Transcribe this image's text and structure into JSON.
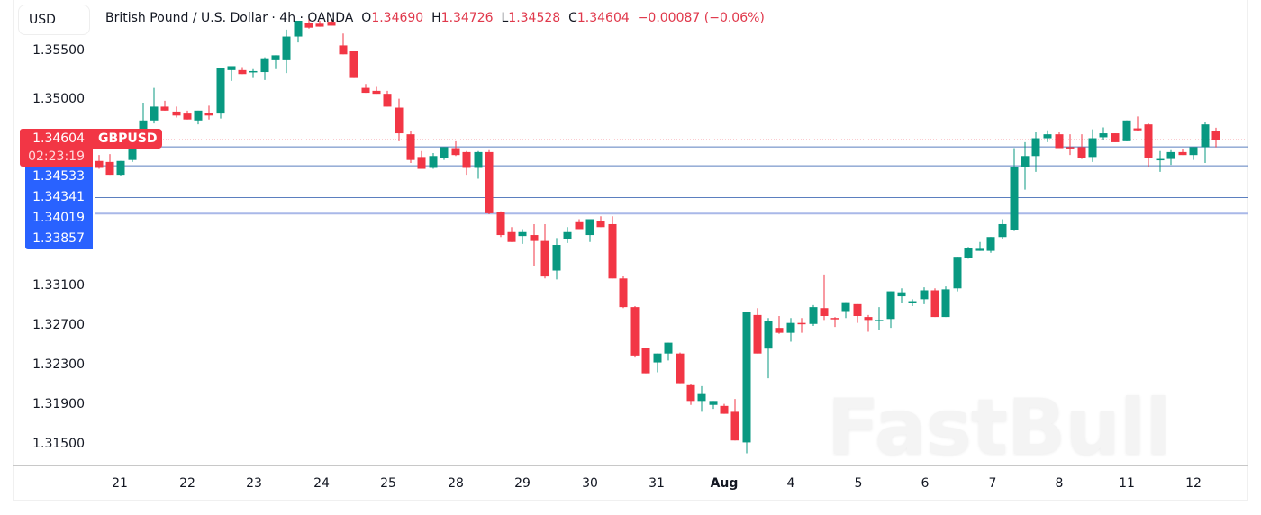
{
  "header": {
    "currency_button": "USD",
    "title": "British Pound / U.S. Dollar · 4h · OANDA",
    "ohlc": {
      "o_label": "O",
      "o": "1.34690",
      "h_label": "H",
      "h": "1.34726",
      "l_label": "L",
      "l": "1.34528",
      "c_label": "C",
      "c": "1.34604",
      "change": "−0.00087 (−0.06%)"
    }
  },
  "price_tags": {
    "current_price": "1.34604",
    "countdown": "02:23:19",
    "symbol": "GBPUSD",
    "levels": [
      "1.34533",
      "1.34341",
      "1.34019",
      "1.33857"
    ]
  },
  "watermark": "FastBull",
  "colors": {
    "up": "#089981",
    "down": "#f23645",
    "level_line": "#5b7fbf",
    "level_line_light": "#a9b8e8",
    "tag_blue": "#2962ff",
    "tag_red": "#f23645"
  },
  "chart_data": {
    "type": "candlestick",
    "title": "British Pound / U.S. Dollar · 4h · OANDA",
    "symbol": "GBPUSD",
    "timeframe": "4h",
    "ylabel": "USD",
    "ylim": [
      1.313,
      1.36
    ],
    "y_ticks": [
      "1.35500",
      "1.35000",
      "1.33100",
      "1.32700",
      "1.32300",
      "1.31900",
      "1.31500"
    ],
    "x_ticks": [
      "21",
      "22",
      "23",
      "24",
      "25",
      "28",
      "29",
      "30",
      "31",
      "Aug",
      "4",
      "5",
      "6",
      "7",
      "8",
      "11",
      "12"
    ],
    "horizontal_levels": [
      1.34533,
      1.34341,
      1.34019,
      1.33857
    ],
    "last": {
      "open": 1.3469,
      "high": 1.34726,
      "low": 1.34528,
      "close": 1.34604,
      "change": -0.00087,
      "change_pct": -0.06
    },
    "candles": [
      [
        110,
        1.3439,
        1.3445,
        1.3431,
        1.3432
      ],
      [
        122,
        1.3438,
        1.3446,
        1.3427,
        1.3425
      ],
      [
        134,
        1.3425,
        1.3438,
        1.3424,
        1.3439
      ],
      [
        147,
        1.344,
        1.3466,
        1.3438,
        1.3466
      ],
      [
        159,
        1.3466,
        1.3498,
        1.3461,
        1.348
      ],
      [
        171,
        1.348,
        1.3513,
        1.3477,
        1.3494
      ],
      [
        183,
        1.3494,
        1.35,
        1.349,
        1.349
      ],
      [
        196,
        1.3489,
        1.3494,
        1.3483,
        1.3485
      ],
      [
        208,
        1.3487,
        1.349,
        1.3481,
        1.3481
      ],
      [
        220,
        1.348,
        1.3486,
        1.3476,
        1.349
      ],
      [
        232,
        1.3488,
        1.3495,
        1.3481,
        1.3485
      ],
      [
        245,
        1.3487,
        1.3528,
        1.3482,
        1.3533
      ],
      [
        257,
        1.3531,
        1.3534,
        1.352,
        1.3535
      ],
      [
        269,
        1.3531,
        1.3534,
        1.3527,
        1.3527
      ],
      [
        281,
        1.353,
        1.3532,
        1.3523,
        1.353
      ],
      [
        294,
        1.3529,
        1.3544,
        1.3521,
        1.3543
      ],
      [
        306,
        1.3541,
        1.3546,
        1.3532,
        1.3546
      ],
      [
        318,
        1.3541,
        1.3572,
        1.3528,
        1.3565
      ],
      [
        331,
        1.3565,
        1.3575,
        1.3559,
        1.3581
      ],
      [
        343,
        1.3579,
        1.3583,
        1.3573,
        1.3574
      ],
      [
        355,
        1.3578,
        1.3581,
        1.3576,
        1.3575
      ],
      [
        368,
        1.358,
        1.3582,
        1.3577,
        1.3576
      ],
      [
        381,
        1.3556,
        1.3568,
        1.3547,
        1.3547
      ],
      [
        393,
        1.355,
        1.3549,
        1.3523,
        1.3523
      ],
      [
        406,
        1.3513,
        1.3517,
        1.3508,
        1.3508
      ],
      [
        418,
        1.351,
        1.3514,
        1.3507,
        1.3507
      ],
      [
        430,
        1.3507,
        1.351,
        1.3497,
        1.3494
      ],
      [
        443,
        1.3493,
        1.3502,
        1.3459,
        1.3467
      ],
      [
        456,
        1.3466,
        1.3469,
        1.3437,
        1.344
      ],
      [
        468,
        1.3443,
        1.3449,
        1.3435,
        1.3431
      ],
      [
        481,
        1.3432,
        1.3447,
        1.3431,
        1.3444
      ],
      [
        493,
        1.3442,
        1.3453,
        1.344,
        1.3453
      ],
      [
        506,
        1.3452,
        1.3459,
        1.3444,
        1.3445
      ],
      [
        518,
        1.3448,
        1.3449,
        1.3425,
        1.3432
      ],
      [
        531,
        1.3432,
        1.3449,
        1.3421,
        1.3448
      ],
      [
        543,
        1.3448,
        1.345,
        1.3385,
        1.3386
      ],
      [
        556,
        1.3387,
        1.3388,
        1.3362,
        1.3364
      ],
      [
        568,
        1.3367,
        1.3372,
        1.3357,
        1.3357
      ],
      [
        580,
        1.3363,
        1.337,
        1.3355,
        1.3367
      ],
      [
        593,
        1.3364,
        1.3375,
        1.3333,
        1.3358
      ],
      [
        605,
        1.3358,
        1.3375,
        1.332,
        1.3322
      ],
      [
        618,
        1.3328,
        1.3361,
        1.3319,
        1.3354
      ],
      [
        630,
        1.336,
        1.3372,
        1.3356,
        1.3367
      ],
      [
        643,
        1.3377,
        1.338,
        1.337,
        1.337
      ],
      [
        655,
        1.3364,
        1.3379,
        1.3357,
        1.338
      ],
      [
        667,
        1.3378,
        1.3383,
        1.3372,
        1.3372
      ],
      [
        680,
        1.3375,
        1.3383,
        1.332,
        1.332
      ],
      [
        692,
        1.332,
        1.3323,
        1.329,
        1.3291
      ],
      [
        705,
        1.3291,
        1.3292,
        1.324,
        1.3242
      ],
      [
        717,
        1.325,
        1.325,
        1.3224,
        1.3224
      ],
      [
        730,
        1.3235,
        1.3239,
        1.3225,
        1.3244
      ],
      [
        742,
        1.3244,
        1.3253,
        1.3237,
        1.3255
      ],
      [
        755,
        1.3244,
        1.3245,
        1.3223,
        1.3214
      ],
      [
        767,
        1.3212,
        1.3213,
        1.3192,
        1.3196
      ],
      [
        779,
        1.3196,
        1.3211,
        1.3185,
        1.3203
      ],
      [
        792,
        1.3192,
        1.3191,
        1.3188,
        1.3196
      ],
      [
        804,
        1.3191,
        1.3193,
        1.3186,
        1.3183
      ],
      [
        816,
        1.3185,
        1.3198,
        1.3177,
        1.3156
      ],
      [
        829,
        1.3154,
        1.3281,
        1.3143,
        1.3286
      ],
      [
        841,
        1.3283,
        1.329,
        1.3245,
        1.3244
      ],
      [
        853,
        1.3249,
        1.328,
        1.3219,
        1.3277
      ],
      [
        865,
        1.327,
        1.3282,
        1.3264,
        1.3265
      ],
      [
        878,
        1.3265,
        1.328,
        1.3256,
        1.3275
      ],
      [
        890,
        1.3275,
        1.328,
        1.3265,
        1.3274
      ],
      [
        903,
        1.3274,
        1.3293,
        1.3272,
        1.3291
      ],
      [
        915,
        1.329,
        1.3324,
        1.3278,
        1.3282
      ],
      [
        927,
        1.328,
        1.3281,
        1.3271,
        1.3279
      ],
      [
        939,
        1.3287,
        1.3292,
        1.328,
        1.3296
      ],
      [
        952,
        1.3294,
        1.3294,
        1.3275,
        1.3282
      ],
      [
        964,
        1.3281,
        1.3283,
        1.3266,
        1.3278
      ],
      [
        976,
        1.3277,
        1.3291,
        1.3268,
        1.3278
      ],
      [
        989,
        1.3279,
        1.3305,
        1.327,
        1.3307
      ],
      [
        1001,
        1.3302,
        1.331,
        1.3295,
        1.3306
      ],
      [
        1013,
        1.3295,
        1.3299,
        1.3292,
        1.3297
      ],
      [
        1026,
        1.3299,
        1.3311,
        1.3294,
        1.3308
      ],
      [
        1038,
        1.3308,
        1.331,
        1.3282,
        1.3281
      ],
      [
        1050,
        1.3281,
        1.3312,
        1.3282,
        1.3309
      ],
      [
        1063,
        1.331,
        1.3325,
        1.3307,
        1.3342
      ],
      [
        1075,
        1.3341,
        1.3352,
        1.334,
        1.3351
      ],
      [
        1088,
        1.3348,
        1.3357,
        1.3349,
        1.335
      ],
      [
        1100,
        1.3348,
        1.3362,
        1.3346,
        1.3362
      ],
      [
        1113,
        1.3362,
        1.338,
        1.336,
        1.3375
      ],
      [
        1126,
        1.3369,
        1.3452,
        1.3368,
        1.3433
      ],
      [
        1138,
        1.3433,
        1.3458,
        1.341,
        1.3444
      ],
      [
        1150,
        1.3444,
        1.3468,
        1.3428,
        1.3462
      ],
      [
        1163,
        1.3462,
        1.347,
        1.3458,
        1.3466
      ],
      [
        1176,
        1.3466,
        1.3468,
        1.3452,
        1.3452
      ],
      [
        1188,
        1.3453,
        1.3466,
        1.3445,
        1.3452
      ],
      [
        1201,
        1.3453,
        1.3466,
        1.3441,
        1.3442
      ],
      [
        1213,
        1.3443,
        1.3471,
        1.3438,
        1.3462
      ],
      [
        1225,
        1.3463,
        1.3473,
        1.346,
        1.3467
      ],
      [
        1238,
        1.3467,
        1.3464,
        1.3458,
        1.3458
      ],
      [
        1251,
        1.3459,
        1.3478,
        1.3459,
        1.348
      ],
      [
        1263,
        1.3472,
        1.3484,
        1.3469,
        1.347
      ],
      [
        1275,
        1.3476,
        1.3477,
        1.3433,
        1.3442
      ],
      [
        1288,
        1.3441,
        1.3449,
        1.3428,
        1.3441
      ],
      [
        1300,
        1.3441,
        1.345,
        1.3435,
        1.3448
      ],
      [
        1313,
        1.3448,
        1.3451,
        1.3445,
        1.3445
      ],
      [
        1325,
        1.3445,
        1.3453,
        1.344,
        1.3453
      ],
      [
        1338,
        1.3453,
        1.3478,
        1.3437,
        1.3476
      ],
      [
        1350,
        1.3469,
        1.34726,
        1.34528,
        1.34604
      ]
    ]
  }
}
